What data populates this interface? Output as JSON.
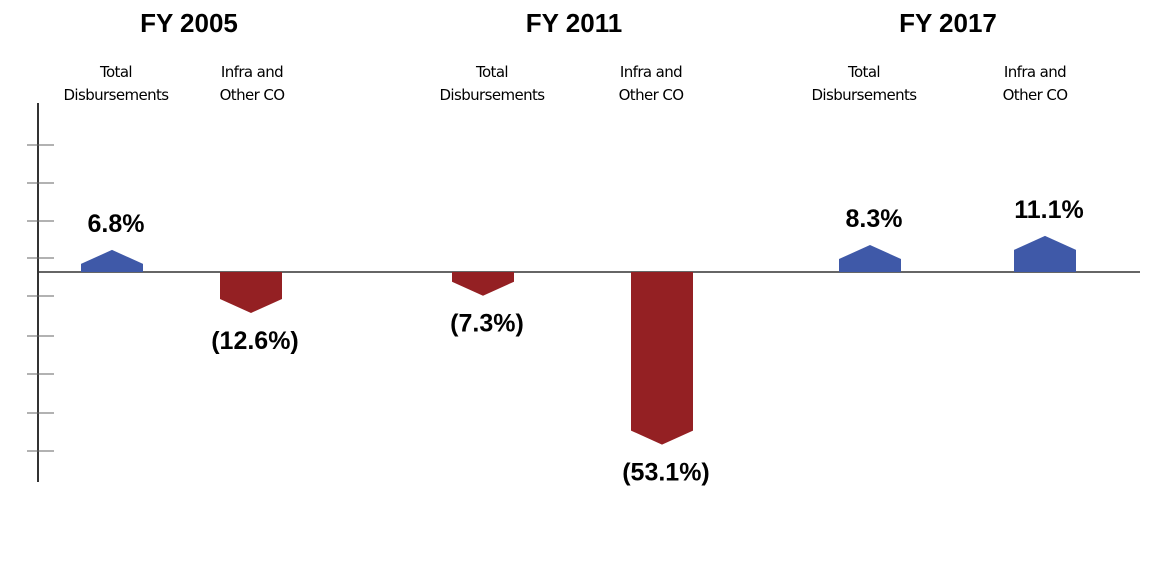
{
  "chart_data": {
    "type": "bar",
    "title": "",
    "xlabel": "",
    "ylabel": "",
    "groups": [
      "FY 2005",
      "FY 2011",
      "FY 2017"
    ],
    "categories": [
      [
        "Total",
        "Disbursements"
      ],
      [
        "Infra and",
        "Other CO"
      ]
    ],
    "values": [
      [
        6.8,
        -12.6
      ],
      [
        -7.3,
        -53.1
      ],
      [
        8.3,
        11.1
      ]
    ],
    "value_labels": [
      [
        "6.8%",
        "(12.6%)"
      ],
      [
        "(7.3%)",
        "(53.1%)"
      ],
      [
        "8.3%",
        "11.1%"
      ]
    ],
    "ylim": [
      -55,
      43
    ],
    "axis_ticks": true,
    "grid": false,
    "legend": "none",
    "colors": {
      "positive": "#3f59a8",
      "negative": "#942023",
      "axis": "#333333"
    }
  }
}
